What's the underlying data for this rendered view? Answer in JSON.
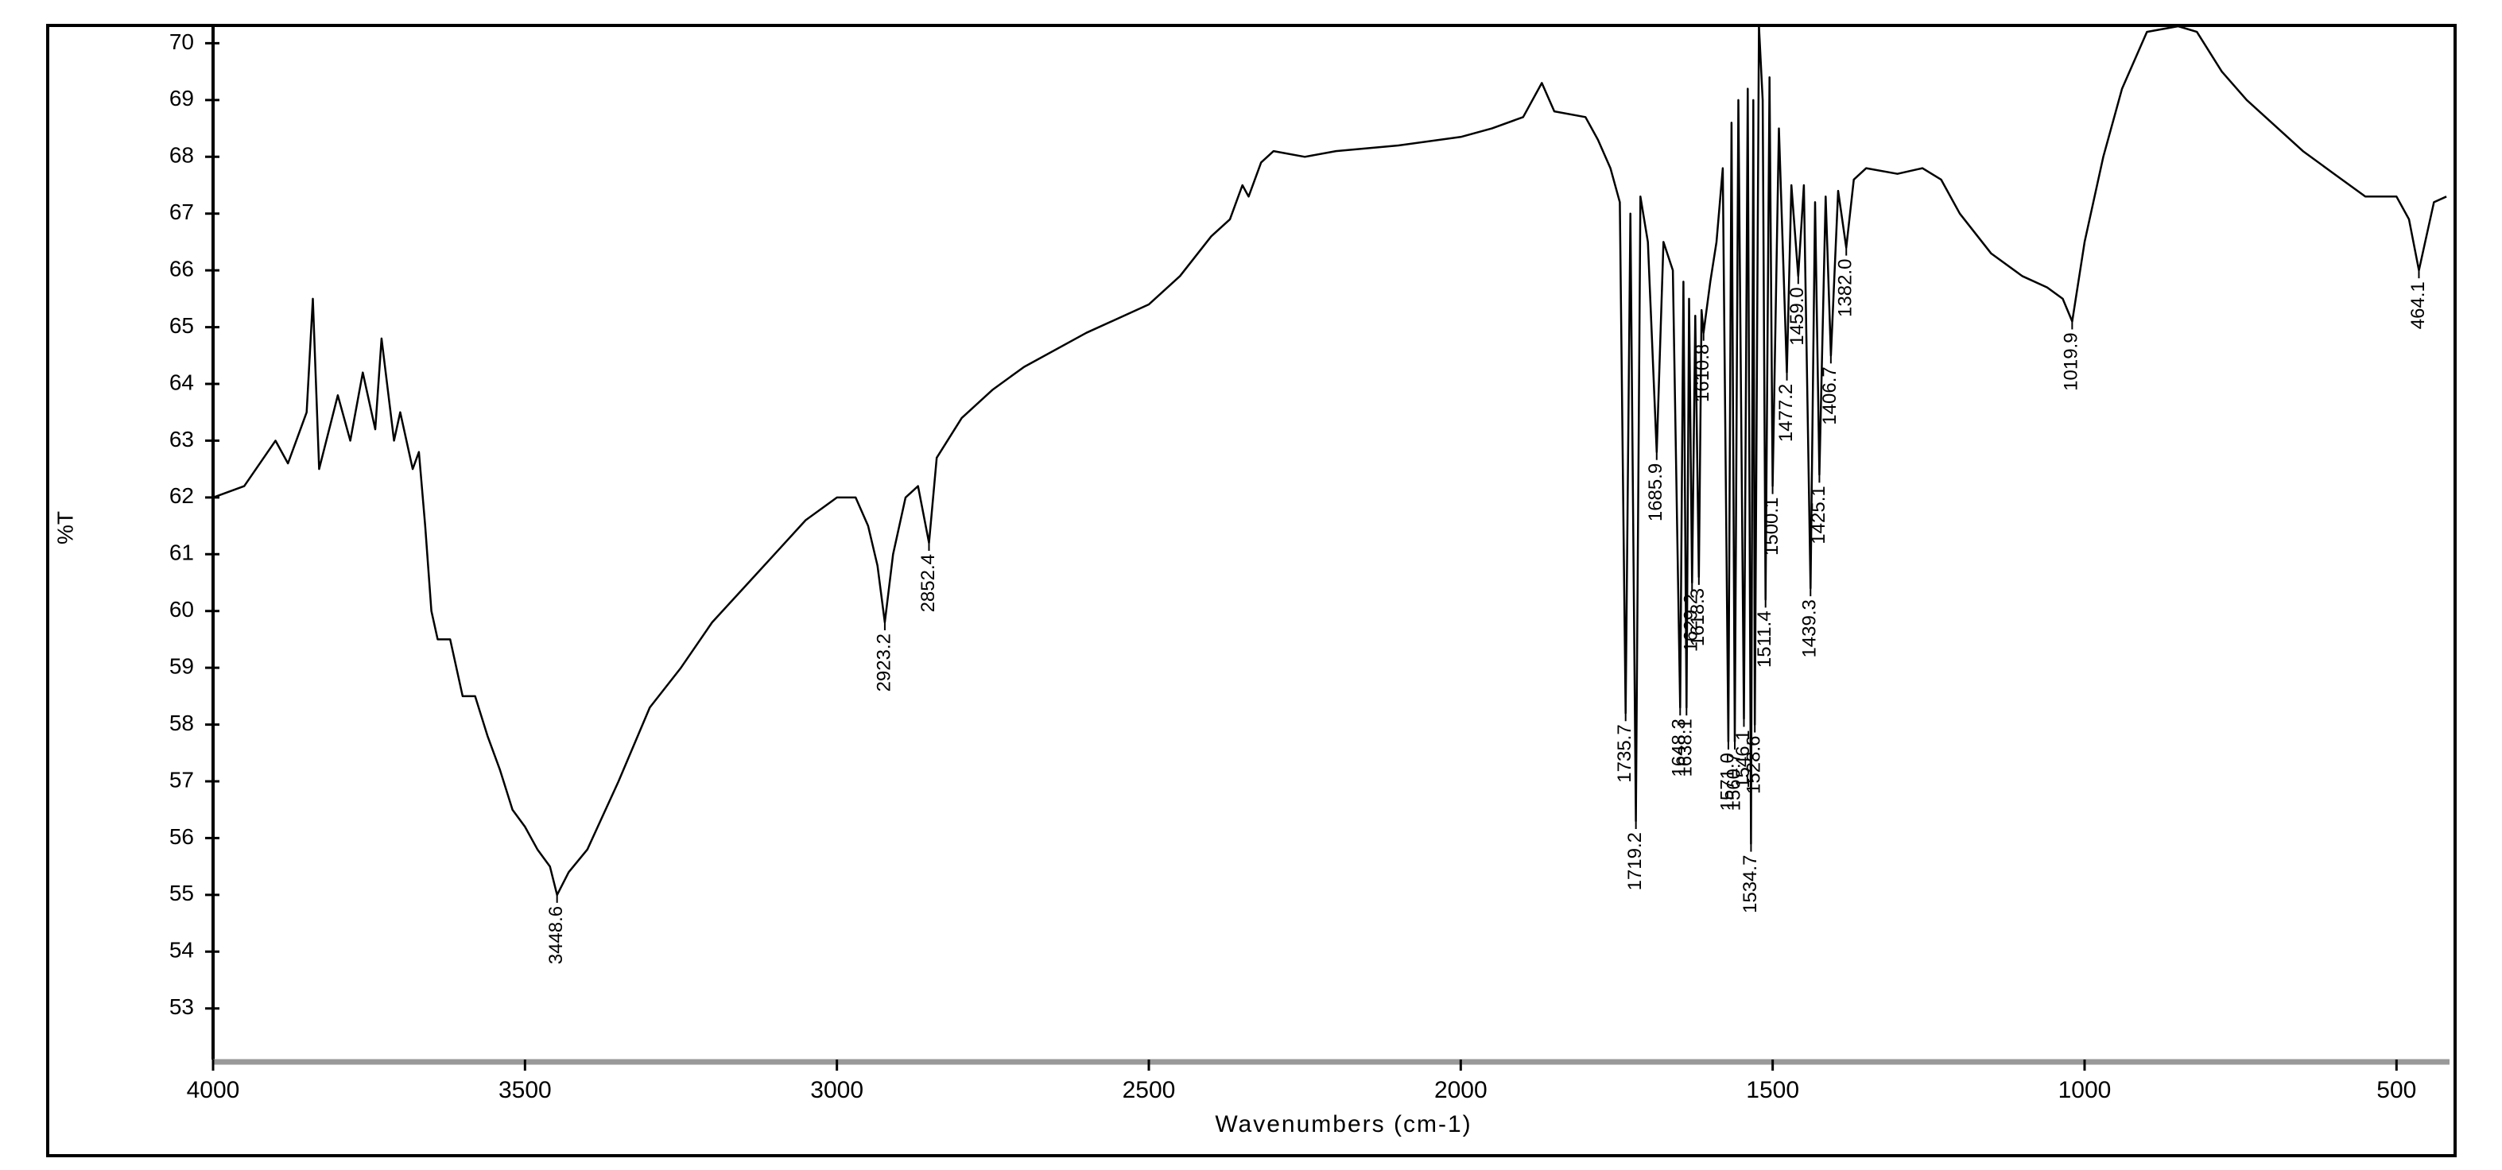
{
  "chart_data": {
    "type": "line",
    "xlabel": "Wavenumbers (cm-1)",
    "ylabel": "%T",
    "xlim": [
      4000,
      415
    ],
    "ylim": [
      52.1,
      70.3
    ],
    "xticks": [
      4000,
      3500,
      3000,
      2500,
      2000,
      1500,
      1000,
      500
    ],
    "yticks": [
      53,
      54,
      55,
      56,
      57,
      58,
      59,
      60,
      61,
      62,
      63,
      64,
      65,
      66,
      67,
      68,
      69,
      70
    ],
    "x": [
      4000,
      3950,
      3900,
      3880,
      3850,
      3840,
      3830,
      3800,
      3780,
      3760,
      3740,
      3730,
      3710,
      3700,
      3680,
      3670,
      3660,
      3650,
      3640,
      3620,
      3600,
      3580,
      3560,
      3540,
      3520,
      3500,
      3480,
      3460,
      3448.6,
      3430,
      3400,
      3350,
      3300,
      3250,
      3200,
      3150,
      3100,
      3050,
      3000,
      2970,
      2950,
      2935,
      2923.2,
      2910,
      2890,
      2870,
      2852.4,
      2840,
      2800,
      2750,
      2700,
      2600,
      2500,
      2450,
      2400,
      2370,
      2350,
      2340,
      2320,
      2300,
      2250,
      2200,
      2100,
      2000,
      1950,
      1900,
      1870,
      1850,
      1800,
      1780,
      1760,
      1745,
      1735.7,
      1728,
      1719.2,
      1712,
      1700,
      1685.9,
      1675,
      1660,
      1648.3,
      1643,
      1638.1,
      1634,
      1629.2,
      1624,
      1618.3,
      1614,
      1610.8,
      1600,
      1590,
      1580,
      1571.0,
      1566,
      1560.7,
      1555,
      1546.1,
      1540,
      1534.7,
      1531,
      1528.6,
      1522,
      1516,
      1511.4,
      1505,
      1500.1,
      1490,
      1477.2,
      1470,
      1459.0,
      1450,
      1439.3,
      1432,
      1425.1,
      1415,
      1406.7,
      1395,
      1382.0,
      1370,
      1350,
      1300,
      1260,
      1230,
      1200,
      1150,
      1100,
      1060,
      1035,
      1019.9,
      1000,
      970,
      940,
      900,
      850,
      820,
      780,
      740,
      700,
      650,
      600,
      550,
      500,
      480,
      464.1,
      450,
      440,
      420
    ],
    "series": [
      {
        "color": "#000000",
        "values": [
          62.0,
          62.2,
          63.0,
          62.6,
          63.5,
          65.5,
          62.5,
          63.8,
          63.0,
          64.2,
          63.2,
          64.8,
          63.0,
          63.5,
          62.5,
          62.8,
          61.5,
          60.0,
          59.5,
          59.5,
          58.5,
          58.5,
          57.8,
          57.2,
          56.5,
          56.2,
          55.8,
          55.5,
          55.0,
          55.4,
          55.8,
          57.0,
          58.3,
          59.0,
          59.8,
          60.4,
          61.0,
          61.6,
          62.0,
          62.0,
          61.5,
          60.8,
          59.8,
          61.0,
          62.0,
          62.2,
          61.2,
          62.7,
          63.4,
          63.9,
          64.3,
          64.9,
          65.4,
          65.9,
          66.6,
          66.9,
          67.5,
          67.3,
          67.9,
          68.1,
          68.0,
          68.1,
          68.2,
          68.35,
          68.5,
          68.7,
          69.3,
          68.8,
          68.7,
          68.3,
          67.8,
          67.2,
          58.2,
          67.0,
          56.3,
          67.3,
          66.5,
          62.8,
          66.5,
          66.0,
          58.3,
          65.8,
          58.3,
          65.5,
          60.5,
          65.2,
          60.6,
          65.3,
          64.9,
          65.8,
          66.5,
          67.8,
          57.7,
          68.6,
          57.7,
          69.0,
          58.1,
          69.2,
          55.9,
          69.0,
          58.0,
          70.3,
          69.0,
          60.2,
          69.4,
          62.2,
          68.5,
          64.2,
          67.5,
          65.9,
          67.5,
          60.4,
          67.2,
          62.4,
          67.3,
          64.5,
          67.4,
          66.4,
          67.6,
          67.8,
          67.7,
          67.8,
          67.6,
          67.0,
          66.3,
          65.9,
          65.7,
          65.5,
          65.1,
          66.5,
          68.0,
          69.2,
          70.2,
          70.3,
          70.2,
          69.5,
          69.0,
          68.6,
          68.1,
          67.7,
          67.3,
          67.3,
          66.9,
          66.0,
          66.7,
          67.2,
          67.3
        ]
      }
    ],
    "peaks": [
      {
        "label": "3448.6",
        "x": 3448.6,
        "y": 55.0
      },
      {
        "label": "2923.2",
        "x": 2923.2,
        "y": 59.8
      },
      {
        "label": "2852.4",
        "x": 2852.4,
        "y": 61.2
      },
      {
        "label": "1735.7",
        "x": 1735.7,
        "y": 58.2
      },
      {
        "label": "1719.2",
        "x": 1719.2,
        "y": 56.3
      },
      {
        "label": "1685.9",
        "x": 1685.9,
        "y": 62.8
      },
      {
        "label": "1648.3",
        "x": 1648.3,
        "y": 58.3
      },
      {
        "label": "1638.1",
        "x": 1638.1,
        "y": 58.3
      },
      {
        "label": "1629.2",
        "x": 1629.2,
        "y": 60.5
      },
      {
        "label": "1618.3",
        "x": 1618.3,
        "y": 60.6
      },
      {
        "label": "1610.8",
        "x": 1610.8,
        "y": 64.9
      },
      {
        "label": "1571.0",
        "x": 1571.0,
        "y": 57.7
      },
      {
        "label": "1560.7",
        "x": 1560.7,
        "y": 57.7
      },
      {
        "label": "1546.1",
        "x": 1546.1,
        "y": 58.1
      },
      {
        "label": "1534.7",
        "x": 1534.7,
        "y": 55.9
      },
      {
        "label": "1528.6",
        "x": 1528.6,
        "y": 58.0
      },
      {
        "label": "1511.4",
        "x": 1511.4,
        "y": 60.2
      },
      {
        "label": "1500.1",
        "x": 1500.1,
        "y": 62.2
      },
      {
        "label": "1477.2",
        "x": 1477.2,
        "y": 64.2
      },
      {
        "label": "1459.0",
        "x": 1459.0,
        "y": 65.9
      },
      {
        "label": "1439.3",
        "x": 1439.3,
        "y": 60.4
      },
      {
        "label": "1425.1",
        "x": 1425.1,
        "y": 62.4
      },
      {
        "label": "1406.7",
        "x": 1406.7,
        "y": 64.5
      },
      {
        "label": "1382.0",
        "x": 1382.0,
        "y": 66.4
      },
      {
        "label": "1019.9",
        "x": 1019.9,
        "y": 65.1
      },
      {
        "label": "464.1",
        "x": 464.1,
        "y": 66.0
      }
    ]
  }
}
